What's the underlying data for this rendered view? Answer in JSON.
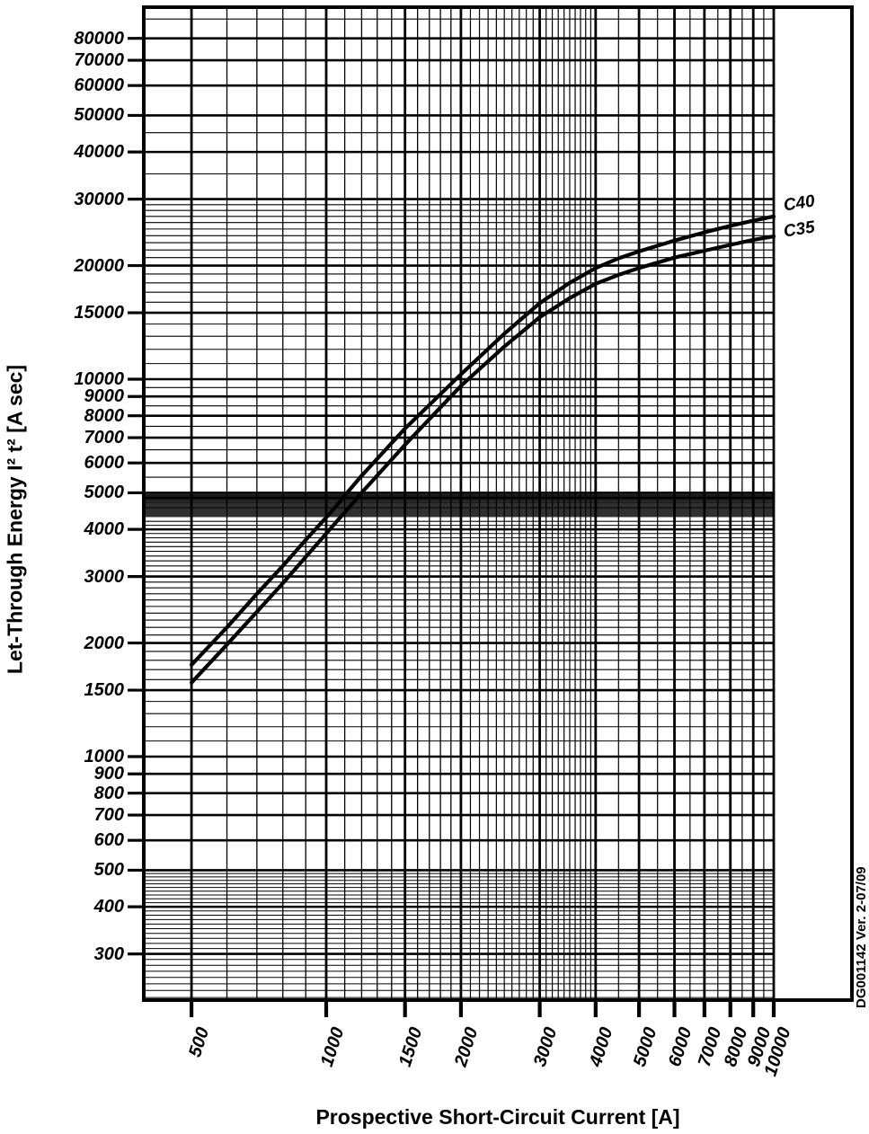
{
  "page": {
    "background": "#ffffff",
    "ink": "#000000"
  },
  "chart_data": {
    "type": "line",
    "title": "",
    "x_axis": {
      "label": "Prospective Short-Circuit Current [A]",
      "scale": "log",
      "ticks": [
        500,
        1000,
        1500,
        2000,
        3000,
        4000,
        5000,
        6000,
        7000,
        8000,
        9000,
        10000
      ],
      "visible_range": [
        391,
        10000
      ]
    },
    "y_axis": {
      "label": "Let-Through Energy I² t² [A sec]",
      "scale": "log",
      "ticks": [
        300,
        400,
        500,
        600,
        700,
        800,
        900,
        1000,
        1500,
        2000,
        3000,
        4000,
        5000,
        6000,
        7000,
        8000,
        9000,
        10000,
        15000,
        20000,
        30000,
        40000,
        50000,
        60000,
        70000,
        80000
      ],
      "visible_range": [
        226,
        96800
      ]
    },
    "grid": {
      "on": true,
      "h_minor_rules": [
        {
          "from": 230,
          "to": 490,
          "step": 10,
          "weight": 1.0
        },
        {
          "from": 1100,
          "to": 1900,
          "step": 100,
          "weight": 1.1
        },
        {
          "from": 2100,
          "to": 4200,
          "step": 100,
          "weight": 1.1
        },
        {
          "from": 4325,
          "to": 4975,
          "step": 25,
          "weight": 0.9
        },
        {
          "from": 5500,
          "to": 9500,
          "step": 500,
          "weight": 1.1
        },
        {
          "from": 11000,
          "to": 29000,
          "step": 1000,
          "weight": 1.1
        },
        {
          "from": 35000,
          "to": 45000,
          "step": 10000,
          "weight": 1.1
        },
        {
          "from": 90000,
          "to": 90000,
          "step": 10000,
          "weight": 1.1
        }
      ],
      "v_minor_rules": [
        {
          "from": 600,
          "to": 900,
          "step": 100,
          "weight": 1.3
        },
        {
          "from": 1100,
          "to": 1900,
          "step": 100,
          "weight": 1.3
        },
        {
          "from": 2100,
          "to": 3900,
          "step": 100,
          "weight": 1.2
        },
        {
          "from": 4500,
          "to": 9500,
          "step": 500,
          "weight": 1.2
        }
      ]
    },
    "series": [
      {
        "name": "C40",
        "points": [
          [
            500,
            1750
          ],
          [
            600,
            2200
          ],
          [
            700,
            2700
          ],
          [
            800,
            3200
          ],
          [
            900,
            3750
          ],
          [
            1000,
            4300
          ],
          [
            1200,
            5550
          ],
          [
            1500,
            7400
          ],
          [
            2000,
            10300
          ],
          [
            2500,
            13200
          ],
          [
            3000,
            15900
          ],
          [
            3500,
            18000
          ],
          [
            4000,
            19700
          ],
          [
            4500,
            20900
          ],
          [
            5000,
            21800
          ],
          [
            6000,
            23300
          ],
          [
            7000,
            24500
          ],
          [
            8000,
            25500
          ],
          [
            9000,
            26300
          ],
          [
            10000,
            27000
          ]
        ]
      },
      {
        "name": "C35",
        "points": [
          [
            500,
            1570
          ],
          [
            600,
            1980
          ],
          [
            700,
            2420
          ],
          [
            800,
            2880
          ],
          [
            900,
            3380
          ],
          [
            1000,
            3900
          ],
          [
            1200,
            5000
          ],
          [
            1500,
            6700
          ],
          [
            2000,
            9600
          ],
          [
            2500,
            12200
          ],
          [
            3000,
            14600
          ],
          [
            3500,
            16400
          ],
          [
            4000,
            17900
          ],
          [
            4500,
            18900
          ],
          [
            5000,
            19700
          ],
          [
            6000,
            21000
          ],
          [
            7000,
            21900
          ],
          [
            8000,
            22700
          ],
          [
            9000,
            23400
          ],
          [
            10000,
            23900
          ]
        ]
      }
    ],
    "legend_position": "right-of-curves",
    "annotations": {
      "version_note": "DG001142 Ver. 2-07/09"
    }
  }
}
